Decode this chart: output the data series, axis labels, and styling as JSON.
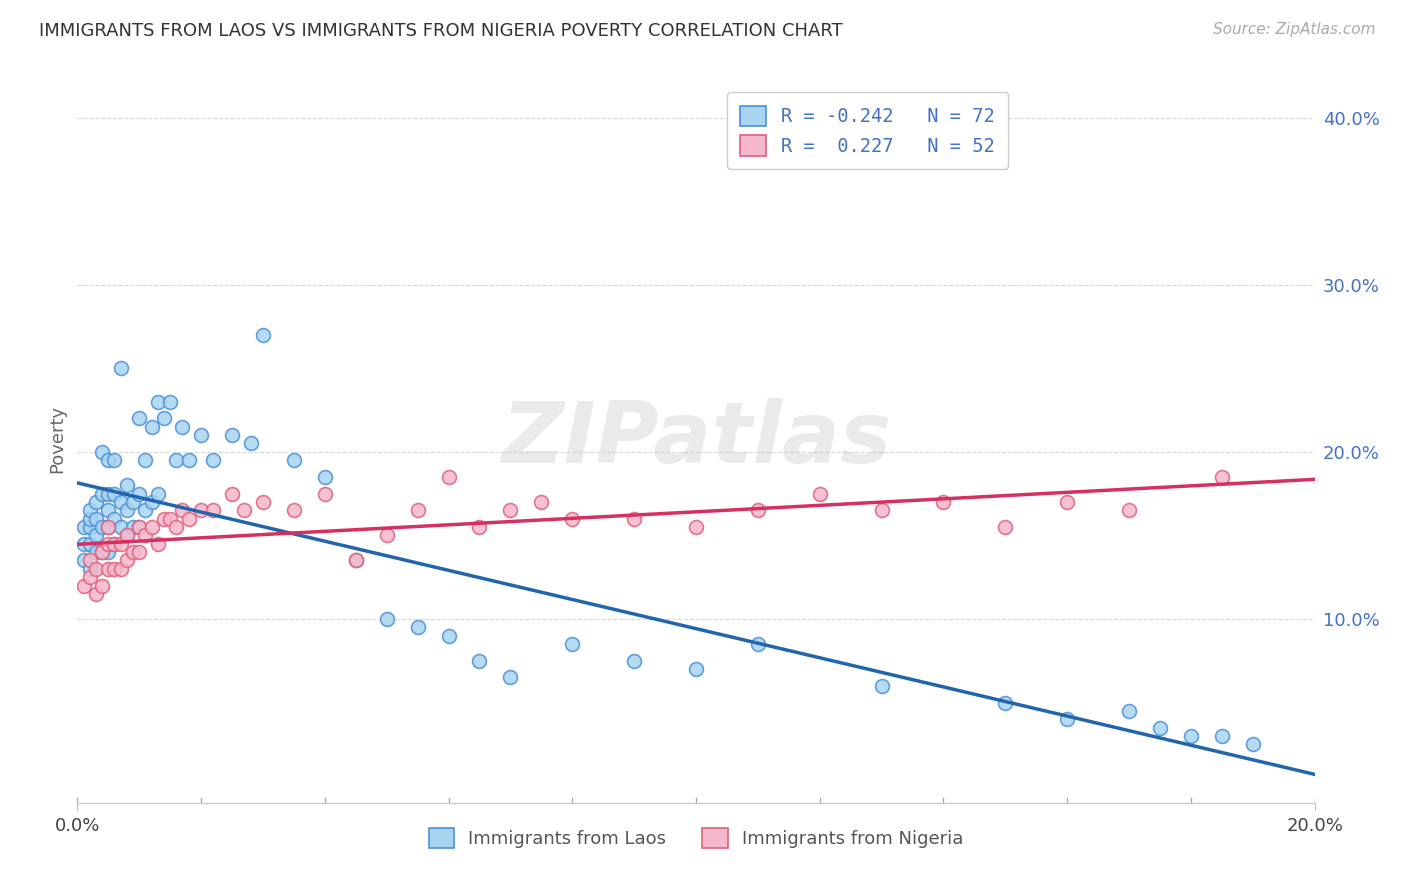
{
  "title": "IMMIGRANTS FROM LAOS VS IMMIGRANTS FROM NIGERIA POVERTY CORRELATION CHART",
  "source": "Source: ZipAtlas.com",
  "ylabel": "Poverty",
  "xlim": [
    0.0,
    0.2
  ],
  "ylim": [
    -0.01,
    0.425
  ],
  "y_ticks": [
    0.1,
    0.2,
    0.3,
    0.4
  ],
  "y_tick_labels": [
    "10.0%",
    "20.0%",
    "30.0%",
    "40.0%"
  ],
  "x_ticks": [
    0.0,
    0.2
  ],
  "x_tick_labels": [
    "0.0%",
    "20.0%"
  ],
  "legend_laos": "R = -0.242   N = 72",
  "legend_nigeria": "R =  0.227   N = 52",
  "color_laos_fill": "#a8d4f0",
  "color_laos_edge": "#4a90d9",
  "color_nigeria_fill": "#f5b8cc",
  "color_nigeria_edge": "#e0607a",
  "color_laos_line": "#2166ac",
  "color_nigeria_line": "#d63060",
  "legend_text_color": "#4472c4",
  "watermark_text": "ZIPatlas",
  "bg": "#ffffff",
  "laos_x": [
    0.001,
    0.001,
    0.001,
    0.002,
    0.002,
    0.002,
    0.002,
    0.002,
    0.003,
    0.003,
    0.003,
    0.003,
    0.004,
    0.004,
    0.004,
    0.004,
    0.005,
    0.005,
    0.005,
    0.005,
    0.005,
    0.006,
    0.006,
    0.006,
    0.006,
    0.007,
    0.007,
    0.007,
    0.008,
    0.008,
    0.008,
    0.009,
    0.009,
    0.01,
    0.01,
    0.01,
    0.011,
    0.011,
    0.012,
    0.012,
    0.013,
    0.013,
    0.014,
    0.015,
    0.016,
    0.017,
    0.018,
    0.02,
    0.022,
    0.025,
    0.028,
    0.03,
    0.035,
    0.04,
    0.045,
    0.05,
    0.055,
    0.06,
    0.065,
    0.07,
    0.08,
    0.09,
    0.1,
    0.11,
    0.13,
    0.15,
    0.16,
    0.17,
    0.175,
    0.18,
    0.185,
    0.19
  ],
  "laos_y": [
    0.135,
    0.145,
    0.155,
    0.13,
    0.145,
    0.155,
    0.16,
    0.165,
    0.14,
    0.15,
    0.16,
    0.17,
    0.14,
    0.155,
    0.175,
    0.2,
    0.14,
    0.155,
    0.165,
    0.175,
    0.195,
    0.145,
    0.16,
    0.175,
    0.195,
    0.155,
    0.17,
    0.25,
    0.15,
    0.165,
    0.18,
    0.155,
    0.17,
    0.155,
    0.175,
    0.22,
    0.165,
    0.195,
    0.17,
    0.215,
    0.175,
    0.23,
    0.22,
    0.23,
    0.195,
    0.215,
    0.195,
    0.21,
    0.195,
    0.21,
    0.205,
    0.27,
    0.195,
    0.185,
    0.135,
    0.1,
    0.095,
    0.09,
    0.075,
    0.065,
    0.085,
    0.075,
    0.07,
    0.085,
    0.06,
    0.05,
    0.04,
    0.045,
    0.035,
    0.03,
    0.03,
    0.025
  ],
  "nigeria_x": [
    0.001,
    0.002,
    0.002,
    0.003,
    0.003,
    0.004,
    0.004,
    0.005,
    0.005,
    0.005,
    0.006,
    0.006,
    0.007,
    0.007,
    0.008,
    0.008,
    0.009,
    0.01,
    0.01,
    0.011,
    0.012,
    0.013,
    0.014,
    0.015,
    0.016,
    0.017,
    0.018,
    0.02,
    0.022,
    0.025,
    0.027,
    0.03,
    0.035,
    0.04,
    0.045,
    0.05,
    0.055,
    0.06,
    0.065,
    0.07,
    0.075,
    0.08,
    0.09,
    0.1,
    0.11,
    0.12,
    0.13,
    0.14,
    0.15,
    0.16,
    0.17,
    0.185
  ],
  "nigeria_y": [
    0.12,
    0.125,
    0.135,
    0.115,
    0.13,
    0.12,
    0.14,
    0.13,
    0.145,
    0.155,
    0.13,
    0.145,
    0.13,
    0.145,
    0.135,
    0.15,
    0.14,
    0.14,
    0.155,
    0.15,
    0.155,
    0.145,
    0.16,
    0.16,
    0.155,
    0.165,
    0.16,
    0.165,
    0.165,
    0.175,
    0.165,
    0.17,
    0.165,
    0.175,
    0.135,
    0.15,
    0.165,
    0.185,
    0.155,
    0.165,
    0.17,
    0.16,
    0.16,
    0.155,
    0.165,
    0.175,
    0.165,
    0.17,
    0.155,
    0.17,
    0.165,
    0.185
  ]
}
